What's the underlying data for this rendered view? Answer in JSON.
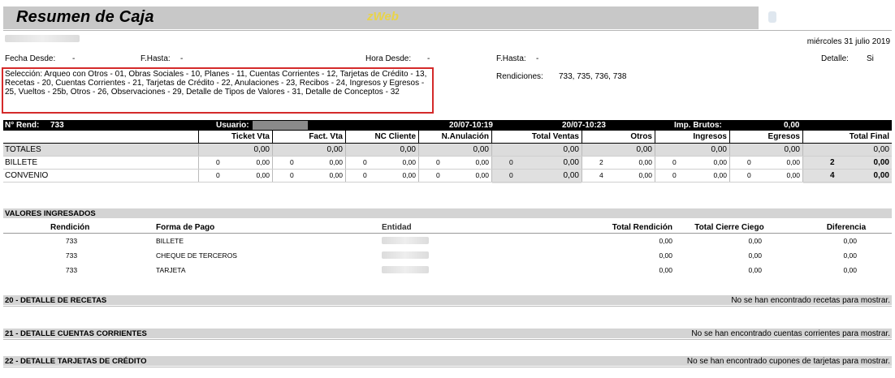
{
  "header": {
    "title": "Resumen de Caja",
    "app": "zWeb",
    "date": "miércoles 31 julio 2019"
  },
  "filters": {
    "fecha_desde_label": "Fecha Desde:",
    "fecha_desde_value": "-",
    "f_hasta_label": "F.Hasta:",
    "f_hasta_value": "-",
    "hora_desde_label": "Hora Desde:",
    "hora_desde_value": "-",
    "f_hasta2_label": "F.Hasta:",
    "f_hasta2_value": "-",
    "detalle_label": "Detalle:",
    "detalle_value": "Si",
    "seleccion_label": "Selección:",
    "seleccion_value": "Arqueo con Otros - 01, Obras Sociales - 10, Planes - 11, Cuentas Corrientes - 12, Tarjetas de Crédito - 13, Recetas - 20, Cuentas Corrientes - 21, Tarjetas de Crédito - 22, Anulaciones - 23, Recibos - 24, Ingresos y Egresos - 25, Vueltos - 25b, Otros - 26, Observaciones - 29, Detalle de Tipos de Valores - 31, Detalle de Conceptos - 32",
    "rendiciones_label": "Rendiciones:",
    "rendiciones_value": "733, 735, 736, 738"
  },
  "rend": {
    "label": "N° Rend:",
    "number": "733",
    "usuario_label": "Usuario:",
    "start": "20/07-10:19",
    "end": "20/07-10:23",
    "imp_brutos_label": "Imp. Brutos:",
    "imp_brutos_value": "0,00"
  },
  "summary_table": {
    "columns": [
      "Ticket Vta",
      "Fact. Vta",
      "NC Cliente",
      "N.Anulación",
      "Total Ventas",
      "Otros",
      "Ingresos",
      "Egresos",
      "Total Final"
    ],
    "rows": [
      {
        "label": "TOTALES",
        "cells": [
          "",
          "0,00",
          "",
          "0,00",
          "",
          "0,00",
          "",
          "0,00",
          "",
          "0,00",
          "",
          "0,00",
          "",
          "0,00",
          "",
          "0,00",
          "",
          "0,00"
        ]
      },
      {
        "label": "BILLETE",
        "cells": [
          "0",
          "0,00",
          "0",
          "0,00",
          "0",
          "0,00",
          "0",
          "0,00",
          "0",
          "0,00",
          "2",
          "0,00",
          "0",
          "0,00",
          "0",
          "0,00",
          "2",
          "0,00"
        ]
      },
      {
        "label": "CONVENIO",
        "cells": [
          "0",
          "0,00",
          "0",
          "0,00",
          "0",
          "0,00",
          "0",
          "0,00",
          "0",
          "0,00",
          "4",
          "0,00",
          "0",
          "0,00",
          "0",
          "0,00",
          "4",
          "0,00"
        ]
      }
    ]
  },
  "valores": {
    "title": "VALORES INGRESADOS",
    "columns": [
      "Rendición",
      "Forma de Pago",
      "Entidad",
      "Total Rendición",
      "Total Cierre Ciego",
      "Diferencia"
    ],
    "rows": [
      {
        "rend": "733",
        "forma": "BILLETE",
        "total": "0,00",
        "ciego": "0,00",
        "dif": "0,00"
      },
      {
        "rend": "733",
        "forma": "CHEQUE DE TERCEROS",
        "total": "0,00",
        "ciego": "0,00",
        "dif": "0,00"
      },
      {
        "rend": "733",
        "forma": "TARJETA",
        "total": "0,00",
        "ciego": "0,00",
        "dif": "0,00"
      }
    ]
  },
  "sections": [
    {
      "title": "20 - DETALLE DE RECETAS",
      "message": "No se han encontrado recetas para mostrar."
    },
    {
      "title": "21 - DETALLE CUENTAS CORRIENTES",
      "message": "No se han encontrado cuentas corrientes para mostrar."
    },
    {
      "title": "22 - DETALLE TARJETAS DE CRÉDITO",
      "message": "No se han encontrado cupones de tarjetas para mostrar."
    }
  ]
}
